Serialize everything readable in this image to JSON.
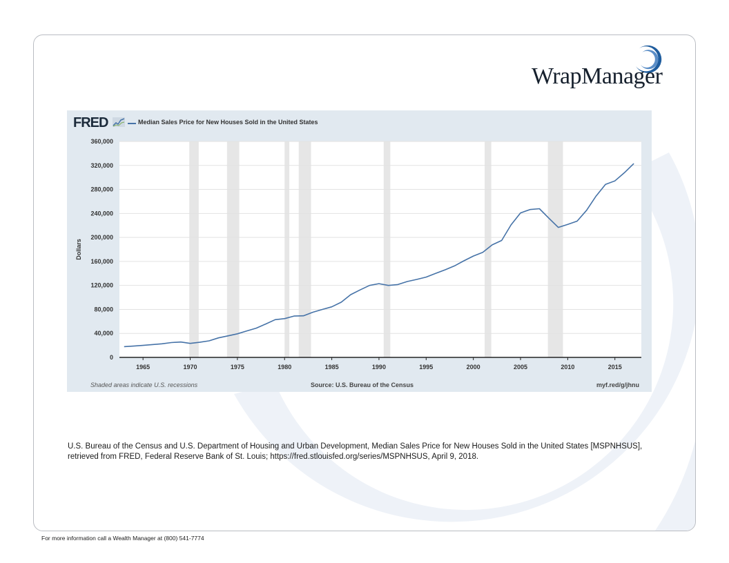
{
  "brand": {
    "name": "WrapManager",
    "accent": "#1f5d9e"
  },
  "chart_data": {
    "type": "line",
    "title": "Median Sales Price for New Houses Sold in the United States",
    "ylabel": "Dollars",
    "xlabel": "",
    "ylim": [
      0,
      360000
    ],
    "xlim": [
      1962.5,
      2017.8
    ],
    "grid": true,
    "legend": "top-left",
    "line_color": "#4572a7",
    "y_ticks": [
      0,
      40000,
      80000,
      120000,
      160000,
      200000,
      240000,
      280000,
      320000,
      360000
    ],
    "y_tick_labels": [
      "0",
      "40,000",
      "80,000",
      "120,000",
      "160,000",
      "200,000",
      "240,000",
      "280,000",
      "320,000",
      "360,000"
    ],
    "x_ticks": [
      1965,
      1970,
      1975,
      1980,
      1985,
      1990,
      1995,
      2000,
      2005,
      2010,
      2015
    ],
    "x_tick_labels": [
      "1965",
      "1970",
      "1975",
      "1980",
      "1985",
      "1990",
      "1995",
      "2000",
      "2005",
      "2010",
      "2015"
    ],
    "recessions": [
      [
        1969.9,
        1970.9
      ],
      [
        1973.9,
        1975.2
      ],
      [
        1980.0,
        1980.5
      ],
      [
        1981.5,
        1982.8
      ],
      [
        1990.5,
        1991.2
      ],
      [
        2001.2,
        2001.9
      ],
      [
        2007.9,
        2009.5
      ]
    ],
    "series": [
      {
        "x": [
          1963,
          1964,
          1965,
          1966,
          1967,
          1968,
          1969,
          1970,
          1971,
          1972,
          1973,
          1974,
          1975,
          1976,
          1977,
          1978,
          1979,
          1980,
          1981,
          1982,
          1983,
          1984,
          1985,
          1986,
          1987,
          1988,
          1989,
          1990,
          1991,
          1992,
          1993,
          1994,
          1995,
          1996,
          1997,
          1998,
          1999,
          2000,
          2001,
          2002,
          2003,
          2004,
          2005,
          2006,
          2007,
          2008,
          2009,
          2010,
          2011,
          2012,
          2013,
          2014,
          2015,
          2016,
          2017
        ],
        "values": [
          18000,
          18900,
          20000,
          21400,
          22700,
          24700,
          25600,
          23400,
          25200,
          27600,
          32500,
          35900,
          39300,
          44200,
          48800,
          55700,
          62900,
          64600,
          68900,
          69300,
          75300,
          79900,
          84300,
          92000,
          104500,
          112500,
          120000,
          122900,
          120000,
          121500,
          126500,
          130000,
          133900,
          140000,
          146000,
          152500,
          161000,
          169000,
          175200,
          187600,
          195000,
          221000,
          240900,
          246500,
          247900,
          232100,
          216700,
          221800,
          227200,
          245200,
          268900,
          288500,
          294200,
          307800,
          323100
        ]
      }
    ],
    "notes": {
      "recession_note": "Shaded areas indicate U.S. recessions",
      "source": "Source: U.S. Bureau of the Census",
      "link": "myf.red/g/jhnu"
    }
  },
  "fred_logo": "FRED",
  "citation": "U.S. Bureau of the Census and U.S. Department of Housing and Urban Development, Median Sales Price for New Houses Sold in the United States [MSPNHSUS], retrieved from FRED, Federal Reserve Bank of St. Louis; https://fred.stlouisfed.org/series/MSPNHSUS, April 9, 2018.",
  "footer": "For more information call a Wealth Manager at (800) 541-7774"
}
